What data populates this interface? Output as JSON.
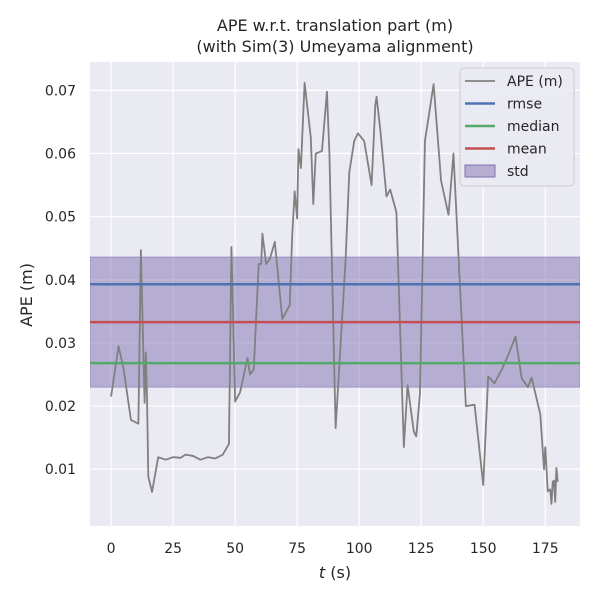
{
  "chart_data": {
    "type": "line",
    "title_line1": "APE w.r.t. translation part (m)",
    "title_line2": "(with Sim(3) Umeyama alignment)",
    "xlabel_var": "t",
    "xlabel_unit": " (s)",
    "ylabel": "APE (m)",
    "xlim": [
      -8.5,
      189
    ],
    "ylim": [
      0.001,
      0.0745
    ],
    "xticks": [
      0,
      25,
      50,
      75,
      100,
      125,
      150,
      175
    ],
    "xtick_labels": [
      "0",
      "25",
      "50",
      "75",
      "100",
      "125",
      "150",
      "175"
    ],
    "yticks": [
      0.01,
      0.02,
      0.03,
      0.04,
      0.05,
      0.06,
      0.07
    ],
    "ytick_labels": [
      "0.01",
      "0.02",
      "0.03",
      "0.04",
      "0.05",
      "0.06",
      "0.07"
    ],
    "grid": true,
    "legend_position": "upper right",
    "stats": {
      "rmse": 0.0393,
      "median": 0.0268,
      "mean": 0.0333,
      "std_low": 0.023,
      "std_high": 0.0436
    },
    "colors": {
      "ape": "#808080",
      "rmse": "#4c72b0",
      "median": "#55a868",
      "mean": "#c44e52",
      "std": "#8172b2",
      "background": "#eaeaf2",
      "grid": "#ffffff"
    },
    "legend": [
      {
        "key": "ape",
        "label": "APE (m)",
        "kind": "line"
      },
      {
        "key": "rmse",
        "label": "rmse",
        "kind": "line"
      },
      {
        "key": "median",
        "label": "median",
        "kind": "line"
      },
      {
        "key": "mean",
        "label": "mean",
        "kind": "line"
      },
      {
        "key": "std",
        "label": "std",
        "kind": "patch"
      }
    ],
    "series": [
      {
        "key": "ape",
        "name": "APE (m)",
        "x": [
          0,
          3,
          5,
          8,
          11,
          12,
          13.5,
          14,
          14.5,
          15,
          16.5,
          19,
          22,
          25,
          28,
          30,
          33,
          36,
          39,
          42,
          45,
          47.5,
          48.5,
          50,
          52,
          55,
          56,
          57.5,
          59.5,
          60.5,
          61,
          62.5,
          64,
          66,
          69,
          72,
          73,
          74,
          75,
          75.5,
          76.5,
          78,
          80.5,
          81.5,
          82.5,
          85,
          87,
          88,
          90.5,
          94.5,
          96,
          98,
          99.5,
          102,
          105,
          106.5,
          107,
          108.5,
          111,
          112.5,
          115,
          118,
          119.5,
          122,
          123,
          124.5,
          126.5,
          130,
          133,
          136,
          138,
          143,
          146.5,
          150,
          152,
          154.5,
          157.5,
          160,
          163,
          165.5,
          168,
          169.5,
          173,
          174.5,
          175,
          176,
          177,
          177.5,
          178,
          178.5,
          179,
          179.5,
          180
        ],
        "y": [
          0.0215,
          0.0295,
          0.026,
          0.0178,
          0.0172,
          0.0447,
          0.0205,
          0.0285,
          0.021,
          0.0088,
          0.0064,
          0.0119,
          0.0115,
          0.0119,
          0.0118,
          0.0123,
          0.0121,
          0.0115,
          0.0119,
          0.0117,
          0.0123,
          0.014,
          0.0452,
          0.0207,
          0.0222,
          0.0276,
          0.025,
          0.0258,
          0.0425,
          0.0425,
          0.0473,
          0.0425,
          0.0433,
          0.046,
          0.0338,
          0.036,
          0.047,
          0.054,
          0.0497,
          0.0607,
          0.0577,
          0.0712,
          0.0625,
          0.052,
          0.06,
          0.0604,
          0.0698,
          0.06,
          0.0165,
          0.043,
          0.057,
          0.062,
          0.0632,
          0.062,
          0.055,
          0.0677,
          0.069,
          0.0638,
          0.0532,
          0.0543,
          0.0507,
          0.0135,
          0.0233,
          0.016,
          0.0152,
          0.022,
          0.062,
          0.071,
          0.0557,
          0.0503,
          0.06,
          0.02,
          0.0202,
          0.0075,
          0.0247,
          0.0236,
          0.0258,
          0.028,
          0.031,
          0.0244,
          0.023,
          0.0245,
          0.0187,
          0.01,
          0.0135,
          0.0065,
          0.0068,
          0.0045,
          0.008,
          0.0082,
          0.0048,
          0.0102,
          0.008
        ]
      }
    ]
  }
}
